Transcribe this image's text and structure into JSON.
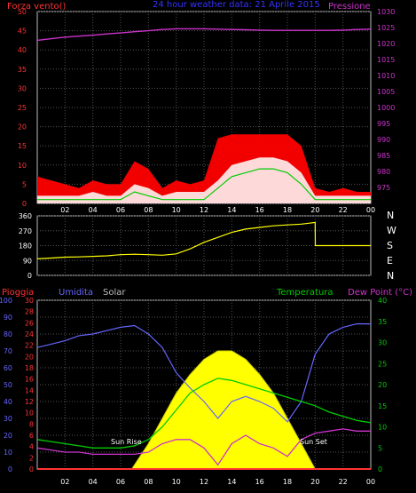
{
  "header": {
    "title": "24 hour weather data:  21 Aprile 2015",
    "left_label": "Forza vento()",
    "right_label": "Pressione"
  },
  "mid": {
    "compass": [
      "N",
      "W",
      "S",
      "E",
      "N"
    ]
  },
  "bottom": {
    "label_pioggia": "Pioggia",
    "label_umidita": "Umidita",
    "label_solar": "Solar",
    "label_temperatura": "Temperatura",
    "label_dewpoint": "Dew Point (°C)",
    "sunrise_label": "Sun Rise",
    "sunset_label": "Sun Set"
  },
  "colors": {
    "wind_gust": "#ff0000",
    "wind_speed": "#ffffff",
    "wind_avg": "#00cc00",
    "pressure": "#cc33cc",
    "direction": "#ffff00",
    "humidity": "#6666ff",
    "temperature": "#00cc00",
    "dewpoint": "#cc33cc",
    "solar": "#ffff00",
    "rain": "#ff3333",
    "grid": "#555555",
    "axis_red": "#ff3333",
    "axis_magenta": "#cc33cc",
    "axis_blue": "#6666ff",
    "axis_green": "#00cc00",
    "axis_gray": "#bbbbbb"
  },
  "chart_data": [
    {
      "type": "line",
      "title": "24 hour weather data:  21 Aprile 2015",
      "x_ticks": [
        "02",
        "04",
        "06",
        "08",
        "10",
        "12",
        "14",
        "16",
        "18",
        "20",
        "22",
        "00"
      ],
      "x_range_hours": [
        0,
        24
      ],
      "y_left_label": "Forza vento()",
      "y_left_range": [
        0,
        50
      ],
      "y_left_ticks": [
        "0",
        "5",
        "10",
        "15",
        "20",
        "25",
        "30",
        "35",
        "40",
        "45",
        "50"
      ],
      "y_right_label": "Pressione",
      "y_right_range": [
        970,
        1030
      ],
      "y_right_ticks": [
        "975",
        "980",
        "985",
        "990",
        "995",
        "1000",
        "1005",
        "1010",
        "1015",
        "1020",
        "1025",
        "1030"
      ],
      "grid": true,
      "series": [
        {
          "name": "Pressione",
          "axis": "right",
          "x": [
            0,
            1,
            2,
            3,
            4,
            5,
            6,
            7,
            8,
            9,
            10,
            11,
            12,
            13,
            14,
            15,
            16,
            17,
            18,
            19,
            20,
            21,
            22,
            23,
            24
          ],
          "y": [
            1021,
            1021.5,
            1022,
            1022.3,
            1022.6,
            1023,
            1023.3,
            1023.7,
            1024,
            1024.4,
            1024.6,
            1024.6,
            1024.6,
            1024.5,
            1024.4,
            1024.3,
            1024.2,
            1024.1,
            1024.1,
            1024.1,
            1024.1,
            1024.1,
            1024.2,
            1024.4,
            1024.5
          ]
        },
        {
          "x": [
            0,
            1,
            2,
            3,
            4,
            5,
            6,
            7,
            8,
            9,
            10,
            11,
            12,
            13,
            14,
            15,
            16,
            17,
            18,
            19,
            20,
            21,
            22,
            23,
            24
          ],
          "y": [
            7,
            6,
            5,
            4,
            6,
            5,
            5,
            11,
            9,
            4,
            6,
            5,
            6,
            17,
            18,
            18,
            18,
            18,
            18,
            15,
            4,
            3,
            4,
            3,
            3
          ]
        },
        {
          "x": [
            0,
            1,
            2,
            3,
            4,
            5,
            6,
            7,
            8,
            9,
            10,
            11,
            12,
            13,
            14,
            15,
            16,
            17,
            18,
            19,
            20,
            21,
            22,
            23,
            24
          ],
          "y": [
            2,
            2,
            2,
            2,
            3,
            2,
            2,
            5,
            4,
            2,
            3,
            3,
            3,
            6,
            10,
            11,
            12,
            12,
            11,
            8,
            2,
            2,
            2,
            2,
            2
          ]
        },
        {
          "x": [
            0,
            1,
            2,
            3,
            4,
            5,
            6,
            7,
            8,
            9,
            10,
            11,
            12,
            13,
            14,
            15,
            16,
            17,
            18,
            19,
            20,
            21,
            22,
            23,
            24
          ],
          "y": [
            1,
            1,
            1,
            1,
            1,
            1,
            1,
            3,
            2,
            1,
            1,
            1,
            1,
            4,
            7,
            8,
            9,
            9,
            8,
            5,
            1,
            1,
            1,
            1,
            1
          ]
        }
      ]
    },
    {
      "type": "line",
      "x_range_hours": [
        0,
        24
      ],
      "y_left_range": [
        0,
        360
      ],
      "y_left_ticks": [
        "0",
        "90",
        "180",
        "270",
        "360"
      ],
      "y_right_labels": [
        "N",
        "W",
        "S",
        "E",
        "N"
      ],
      "series": [
        {
          "x": [
            0,
            1,
            2,
            3,
            4,
            5,
            6,
            7,
            8,
            9,
            10,
            11,
            12,
            13,
            14,
            15,
            16,
            17,
            18,
            19,
            20,
            20.01,
            24
          ],
          "y": [
            100,
            105,
            110,
            112,
            115,
            118,
            125,
            128,
            125,
            122,
            130,
            160,
            200,
            230,
            260,
            280,
            290,
            300,
            305,
            310,
            320,
            180,
            180
          ]
        }
      ]
    },
    {
      "type": "line",
      "x_ticks": [
        "02",
        "04",
        "06",
        "08",
        "10",
        "12",
        "14",
        "16",
        "18",
        "20",
        "22",
        "00"
      ],
      "x_range_hours": [
        0,
        24
      ],
      "axes": [
        {
          "label": "Umidita",
          "range": [
            0,
            100
          ],
          "ticks": [
            "0",
            "10",
            "20",
            "30",
            "40",
            "50",
            "60",
            "70",
            "80",
            "90",
            "100"
          ]
        },
        {
          "label": "Pioggia",
          "range": [
            0,
            30
          ],
          "ticks": [
            "0",
            "2",
            "4",
            "6",
            "8",
            "10",
            "12",
            "14",
            "16",
            "18",
            "20",
            "22",
            "24",
            "26",
            "28",
            "30"
          ]
        },
        {
          "label": "Temperatura",
          "range": [
            0,
            40
          ],
          "ticks": [
            "0",
            "5",
            "10",
            "15",
            "20",
            "25",
            "30",
            "35",
            "40"
          ]
        }
      ],
      "annotations": [
        "Sun Rise",
        "Sun Set"
      ],
      "series": [
        {
          "name": "Umidita",
          "axis": "Umidita",
          "x": [
            0,
            1,
            2,
            3,
            4,
            5,
            6,
            7,
            8,
            9,
            10,
            11,
            12,
            13,
            14,
            15,
            16,
            17,
            18,
            19,
            20,
            21,
            22,
            23,
            24
          ],
          "y": [
            72,
            74,
            76,
            79,
            80,
            82,
            84,
            85,
            80,
            72,
            57,
            48,
            40,
            30,
            40,
            43,
            40,
            36,
            28,
            40,
            68,
            80,
            84,
            86,
            86
          ]
        },
        {
          "name": "Temperatura",
          "axis": "Temperatura",
          "x": [
            0,
            1,
            2,
            3,
            4,
            5,
            6,
            7,
            8,
            9,
            10,
            11,
            12,
            13,
            14,
            15,
            16,
            17,
            18,
            19,
            20,
            21,
            22,
            23,
            24
          ],
          "y": [
            7,
            6.5,
            6,
            5.5,
            5,
            5,
            5,
            5.5,
            7,
            10,
            14,
            18,
            20,
            21.5,
            21,
            20,
            19,
            18,
            17,
            16,
            15,
            13.5,
            12.5,
            11.5,
            11
          ]
        },
        {
          "name": "Dew Point (°C)",
          "axis": "Temperatura",
          "x": [
            0,
            1,
            2,
            3,
            4,
            5,
            6,
            7,
            8,
            9,
            10,
            11,
            12,
            13,
            14,
            15,
            16,
            17,
            18,
            19,
            20,
            21,
            22,
            23,
            24
          ],
          "y": [
            5,
            4.5,
            4,
            4,
            3.5,
            3.5,
            3.5,
            3.5,
            4,
            6,
            7,
            7,
            5,
            1,
            6,
            8,
            6,
            5,
            3,
            7,
            8.5,
            9,
            9.5,
            9,
            9
          ]
        },
        {
          "name": "Solar",
          "type": "area",
          "x": [
            6.8,
            8,
            9,
            10,
            11,
            12,
            13,
            14,
            15,
            16,
            17,
            18,
            19,
            20
          ],
          "y": [
            0,
            150,
            300,
            450,
            560,
            650,
            700,
            700,
            650,
            560,
            450,
            300,
            150,
            0
          ]
        },
        {
          "name": "Pioggia",
          "axis": "Pioggia",
          "x": [
            0,
            24
          ],
          "y": [
            0,
            0
          ]
        }
      ]
    }
  ]
}
